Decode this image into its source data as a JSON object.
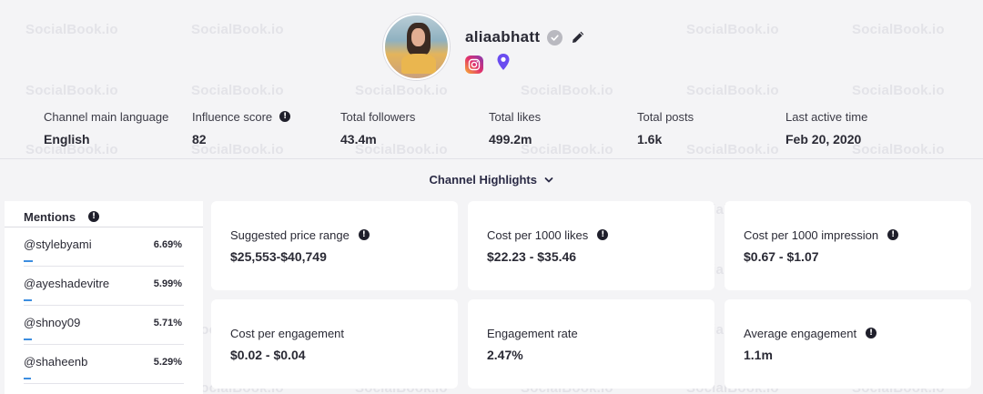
{
  "watermark": "SocialBook.io",
  "profile": {
    "username": "aliaabhatt",
    "verified_icon": "verified-check-icon",
    "edit_icon": "pencil-icon",
    "platform_icon": "instagram-icon",
    "location_icon": "location-pin-icon"
  },
  "stats": [
    {
      "label": "Channel main language",
      "value": "English",
      "info": false
    },
    {
      "label": "Influence score",
      "value": "82",
      "info": true
    },
    {
      "label": "Total followers",
      "value": "43.4m",
      "info": false
    },
    {
      "label": "Total likes",
      "value": "499.2m",
      "info": false
    },
    {
      "label": "Total posts",
      "value": "1.6k",
      "info": false
    },
    {
      "label": "Last active time",
      "value": "Feb 20, 2020",
      "info": false
    }
  ],
  "highlights": {
    "label": "Channel Highlights"
  },
  "mentions": {
    "title": "Mentions",
    "items": [
      {
        "handle": "@stylebyami",
        "percent": "6.69%",
        "share": 6.69
      },
      {
        "handle": "@ayeshadevitre",
        "percent": "5.99%",
        "share": 5.99
      },
      {
        "handle": "@shnoy09",
        "percent": "5.71%",
        "share": 5.71
      },
      {
        "handle": "@shaheenb",
        "percent": "5.29%",
        "share": 5.29
      }
    ]
  },
  "cards": [
    {
      "label": "Suggested price range",
      "value": "$25,553-$40,749",
      "info": true
    },
    {
      "label": "Cost per 1000 likes",
      "value": "$22.23 - $35.46",
      "info": true
    },
    {
      "label": "Cost per 1000 impression",
      "value": "$0.67 - $1.07",
      "info": true
    },
    {
      "label": "Cost per engagement",
      "value": "$0.02 - $0.04",
      "info": false
    },
    {
      "label": "Engagement rate",
      "value": "2.47%",
      "info": false
    },
    {
      "label": "Average engagement",
      "value": "1.1m",
      "info": true
    }
  ],
  "colors": {
    "accent": "#3d8ee0",
    "text": "#2a2a35",
    "background": "#f4f4f6"
  }
}
